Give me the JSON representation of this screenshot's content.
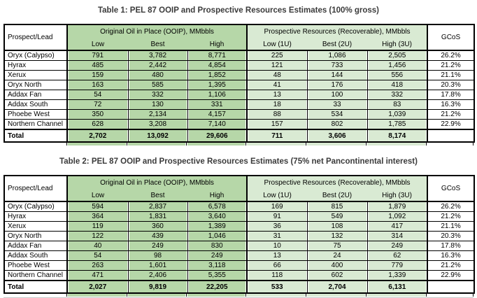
{
  "colors": {
    "ooip_fill": "#b6d7a8",
    "prospective_fill": "#d9ead3",
    "border": "#000000",
    "title_text": "#3b3b3b"
  },
  "tables": [
    {
      "title": "Table 1: PEL 87 OOIP and Prospective Resources Estimates (100% gross)",
      "columns": {
        "prospect": "Prospect/Lead",
        "ooip_group": "Original Oil in Place (OOIP), MMbbls",
        "pr_group": "Prospective Resources (Recoverable), MMbbls",
        "gcos": "GCoS",
        "ooip_sub": [
          "Low",
          "Best",
          "High"
        ],
        "pr_sub": [
          "Low (1U)",
          "Best (2U)",
          "High (3U)"
        ]
      },
      "rows": [
        {
          "label": "Oryx (Calypso)",
          "ooip": [
            "791",
            "3,782",
            "8,771"
          ],
          "pr": [
            "225",
            "1,086",
            "2,505"
          ],
          "gcos": "26.2%"
        },
        {
          "label": "Hyrax",
          "ooip": [
            "485",
            "2,442",
            "4,854"
          ],
          "pr": [
            "121",
            "733",
            "1,456"
          ],
          "gcos": "21.2%"
        },
        {
          "label": "Xerux",
          "ooip": [
            "159",
            "480",
            "1,852"
          ],
          "pr": [
            "48",
            "144",
            "556"
          ],
          "gcos": "21.1%"
        },
        {
          "label": "Oryx North",
          "ooip": [
            "163",
            "585",
            "1,395"
          ],
          "pr": [
            "41",
            "176",
            "418"
          ],
          "gcos": "20.3%"
        },
        {
          "label": "Addax Fan",
          "ooip": [
            "54",
            "332",
            "1,106"
          ],
          "pr": [
            "13",
            "100",
            "332"
          ],
          "gcos": "17.8%"
        },
        {
          "label": "Addax South",
          "ooip": [
            "72",
            "130",
            "331"
          ],
          "pr": [
            "18",
            "33",
            "83"
          ],
          "gcos": "16.3%"
        },
        {
          "label": "Phoebe West",
          "ooip": [
            "350",
            "2,134",
            "4,157"
          ],
          "pr": [
            "88",
            "534",
            "1,039"
          ],
          "gcos": "21.2%"
        },
        {
          "label": "Northern Channel",
          "ooip": [
            "628",
            "3,208",
            "7,140"
          ],
          "pr": [
            "157",
            "802",
            "1,785"
          ],
          "gcos": "22.9%"
        }
      ],
      "total_row": {
        "label": "Total",
        "ooip": [
          "2,702",
          "13,092",
          "29,606"
        ],
        "pr": [
          "711",
          "3,606",
          "8,174"
        ],
        "gcos": ""
      }
    },
    {
      "title": "Table 2: PEL 87 OOIP and Prospective Resources Estimates (75% net Pancontinental interest)",
      "columns": {
        "prospect": "Prospect/Lead",
        "ooip_group": "Original Oil in Place (OOIP), MMbbls",
        "pr_group": "Prospective Resources (Recoverable), MMbbls",
        "gcos": "GCoS",
        "ooip_sub": [
          "Low",
          "Best",
          "High"
        ],
        "pr_sub": [
          "Low (1U)",
          "Best (2U)",
          "High (3U)"
        ]
      },
      "rows": [
        {
          "label": "Oryx (Calypso)",
          "ooip": [
            "594",
            "2,837",
            "6,578"
          ],
          "pr": [
            "169",
            "815",
            "1,879"
          ],
          "gcos": "26.2%"
        },
        {
          "label": "Hyrax",
          "ooip": [
            "364",
            "1,831",
            "3,640"
          ],
          "pr": [
            "91",
            "549",
            "1,092"
          ],
          "gcos": "21.2%"
        },
        {
          "label": "Xerux",
          "ooip": [
            "119",
            "360",
            "1,389"
          ],
          "pr": [
            "36",
            "108",
            "417"
          ],
          "gcos": "21.1%"
        },
        {
          "label": "Oryx North",
          "ooip": [
            "122",
            "439",
            "1,046"
          ],
          "pr": [
            "31",
            "132",
            "314"
          ],
          "gcos": "20.3%"
        },
        {
          "label": "Addax Fan",
          "ooip": [
            "40",
            "249",
            "830"
          ],
          "pr": [
            "10",
            "75",
            "249"
          ],
          "gcos": "17.8%"
        },
        {
          "label": "Addax South",
          "ooip": [
            "54",
            "98",
            "249"
          ],
          "pr": [
            "13",
            "24",
            "62"
          ],
          "gcos": "16.3%"
        },
        {
          "label": "Phoebe West",
          "ooip": [
            "263",
            "1,601",
            "3,118"
          ],
          "pr": [
            "66",
            "400",
            "779"
          ],
          "gcos": "21.2%"
        },
        {
          "label": "Northern Channel",
          "ooip": [
            "471",
            "2,406",
            "5,355"
          ],
          "pr": [
            "118",
            "602",
            "1,339"
          ],
          "gcos": "22.9%"
        }
      ],
      "total_row": {
        "label": "Total",
        "ooip": [
          "2,027",
          "9,819",
          "22,205"
        ],
        "pr": [
          "533",
          "2,704",
          "6,131"
        ],
        "gcos": ""
      }
    }
  ]
}
